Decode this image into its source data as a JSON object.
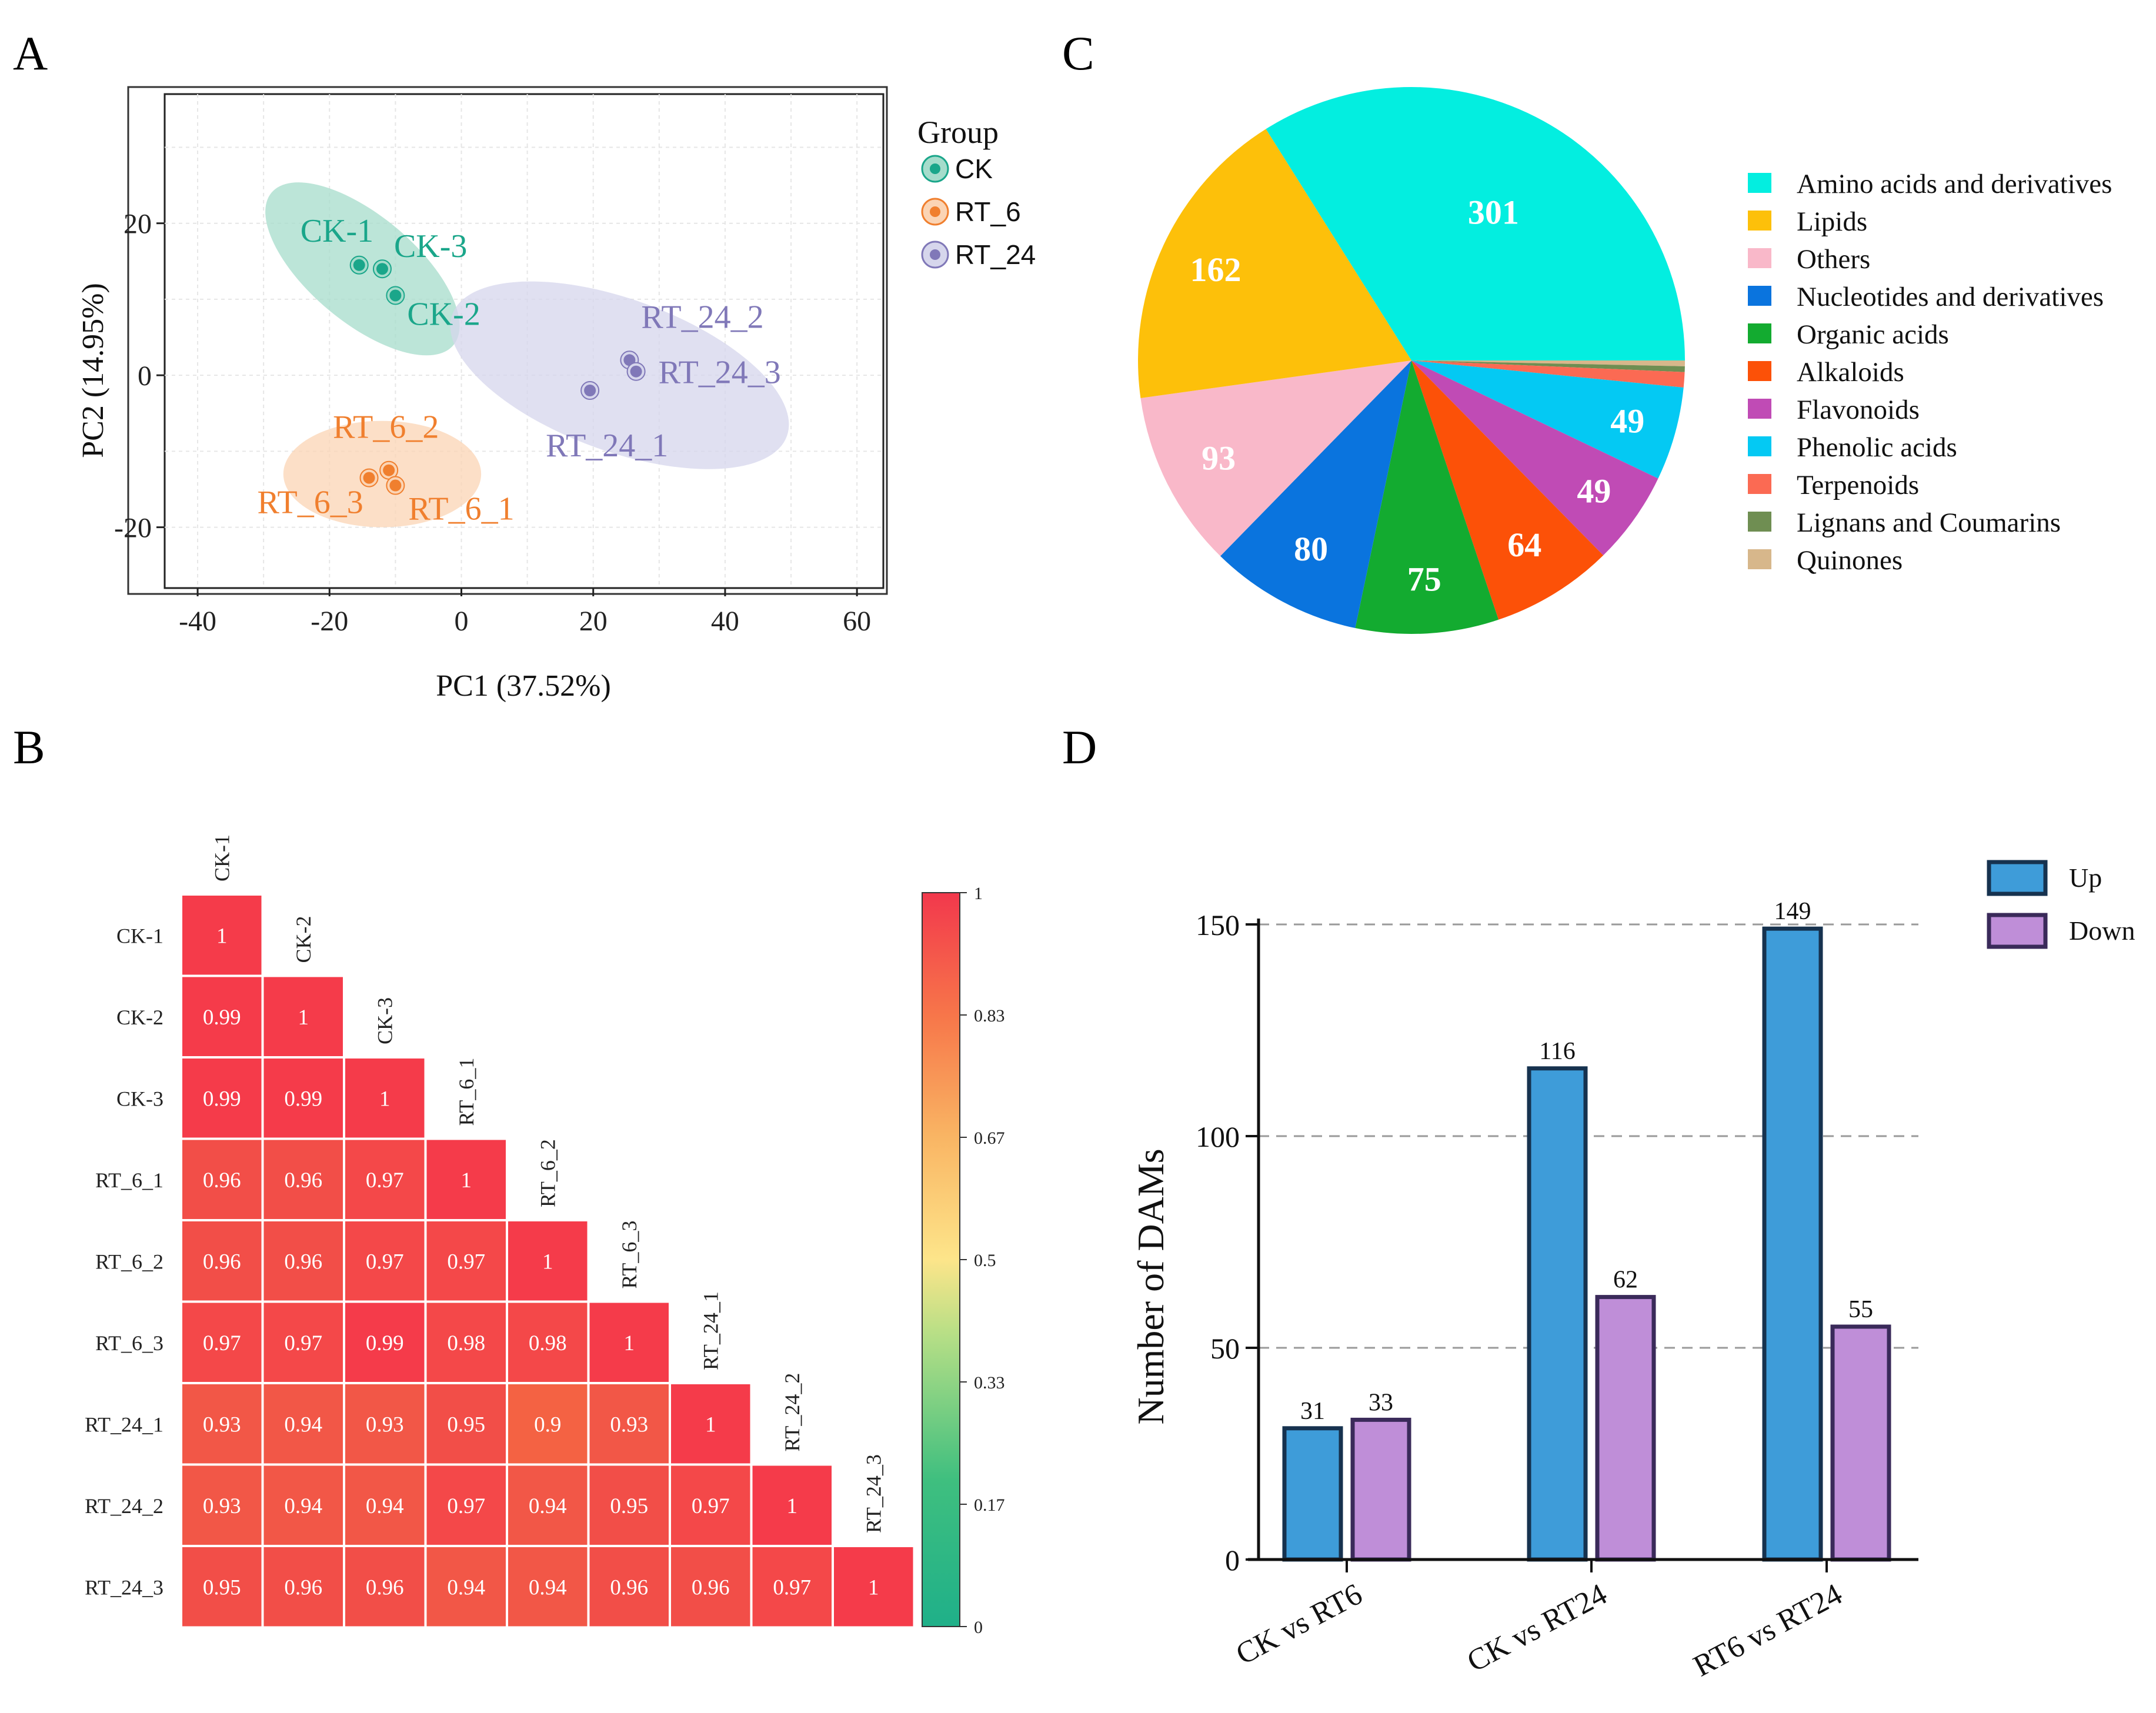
{
  "panel_labels": {
    "a": "A",
    "b": "B",
    "c": "C",
    "d": "D"
  },
  "chart_data": [
    {
      "id": "A",
      "type": "scatter",
      "xlabel": "PC1 (37.52%)",
      "ylabel": "PC2 (14.95%)",
      "xlim": [
        -45,
        64
      ],
      "ylim": [
        -28,
        37
      ],
      "xticks": [
        -40,
        -20,
        0,
        20,
        40,
        60
      ],
      "yticks": [
        -20,
        0,
        20
      ],
      "legend_title": "Group",
      "legend_position": "right",
      "groups": [
        {
          "name": "CK",
          "color": "#1aa68a",
          "fill": "#a5dccb",
          "ellipse": {
            "cx": -15,
            "cy": 14,
            "rx": 18,
            "ry": 7,
            "angle_deg": -40
          },
          "points": [
            {
              "label": "CK-1",
              "x": -15.5,
              "y": 14.5
            },
            {
              "label": "CK-3",
              "x": -12,
              "y": 14
            },
            {
              "label": "CK-2",
              "x": -10,
              "y": 10.5
            }
          ]
        },
        {
          "name": "RT_6",
          "color": "#f07f2e",
          "fill": "#fbd4b4",
          "ellipse": {
            "cx": -12,
            "cy": -13,
            "rx": 15,
            "ry": 7,
            "angle_deg": 0
          },
          "points": [
            {
              "label": "RT_6_2",
              "x": -11,
              "y": -12.5
            },
            {
              "label": "RT_6_3",
              "x": -14,
              "y": -13.5
            },
            {
              "label": "RT_6_1",
              "x": -10,
              "y": -14.5
            }
          ]
        },
        {
          "name": "RT_24",
          "color": "#8078b8",
          "fill": "#d6d6ec",
          "ellipse": {
            "cx": 24,
            "cy": 0,
            "rx": 27,
            "ry": 10,
            "angle_deg": -20
          },
          "points": [
            {
              "label": "RT_24_2",
              "x": 25.5,
              "y": 2
            },
            {
              "label": "RT_24_3",
              "x": 26.5,
              "y": 0.5
            },
            {
              "label": "RT_24_1",
              "x": 19.5,
              "y": -2
            }
          ]
        }
      ]
    },
    {
      "id": "B",
      "type": "heatmap",
      "labels": [
        "CK-1",
        "CK-2",
        "CK-3",
        "RT_6_1",
        "RT_6_2",
        "RT_6_3",
        "RT_24_1",
        "RT_24_2",
        "RT_24_3"
      ],
      "matrix": [
        [
          1
        ],
        [
          0.99,
          1
        ],
        [
          0.99,
          0.99,
          1
        ],
        [
          0.96,
          0.96,
          0.97,
          1
        ],
        [
          0.96,
          0.96,
          0.97,
          0.97,
          1
        ],
        [
          0.97,
          0.97,
          0.99,
          0.98,
          0.98,
          1
        ],
        [
          0.93,
          0.94,
          0.93,
          0.95,
          0.9,
          0.93,
          1
        ],
        [
          0.93,
          0.94,
          0.94,
          0.97,
          0.94,
          0.95,
          0.97,
          1
        ],
        [
          0.95,
          0.96,
          0.96,
          0.94,
          0.94,
          0.96,
          0.96,
          0.97,
          1
        ]
      ],
      "colorbar_ticks": [
        "1",
        "0.83",
        "0.67",
        "0.5",
        "0.33",
        "0.17",
        "0"
      ],
      "colorbar_range": [
        0,
        1
      ]
    },
    {
      "id": "C",
      "type": "pie",
      "slices": [
        {
          "label": "Amino acids and derivatives",
          "value": 301,
          "color": "#03eee0",
          "text": "301"
        },
        {
          "label": "Lipids",
          "value": 162,
          "color": "#fdc00a",
          "text": "162"
        },
        {
          "label": "Others",
          "value": 93,
          "color": "#f9b8c9",
          "text": "93"
        },
        {
          "label": "Nucleotides and derivatives",
          "value": 80,
          "color": "#0a74de",
          "text": "80"
        },
        {
          "label": "Organic acids",
          "value": 75,
          "color": "#13ab30",
          "text": "75"
        },
        {
          "label": "Alkaloids",
          "value": 64,
          "color": "#fc5108",
          "text": "64"
        },
        {
          "label": "Flavonoids",
          "value": 49,
          "color": "#c04bb5",
          "text": "49"
        },
        {
          "label": "Phenolic acids",
          "value": 49,
          "color": "#04c9f3",
          "text": "49"
        },
        {
          "label": "Terpenoids",
          "value": 8,
          "color": "#fb6a53",
          "text": ""
        },
        {
          "label": "Lignans and Coumarins",
          "value": 3,
          "color": "#6f8e52",
          "text": ""
        },
        {
          "label": "Quinones",
          "value": 3,
          "color": "#d7b78b",
          "text": ""
        }
      ],
      "order": [
        "Amino acids and derivatives",
        "Phenolic acids",
        "Flavonoids",
        "Alkaloids",
        "Organic acids",
        "Nucleotides and derivatives",
        "Others",
        "Lipids"
      ],
      "legend_position": "right"
    },
    {
      "id": "D",
      "type": "bar",
      "categories": [
        "CK vs RT6",
        "CK vs RT24",
        "RT6 vs RT24"
      ],
      "series": [
        {
          "name": "Up",
          "values": [
            31,
            116,
            149
          ],
          "color": "#3e9cd9",
          "stroke": "#16324f"
        },
        {
          "name": "Down",
          "values": [
            33,
            62,
            55
          ],
          "color": "#bf8ed8",
          "stroke": "#3a2a5a"
        }
      ],
      "ylabel": "Number of DAMs",
      "ylim": [
        0,
        150
      ],
      "yticks": [
        0,
        50,
        100,
        150
      ],
      "grid_lines": [
        50,
        100,
        150
      ],
      "legend_position": "top-right"
    }
  ]
}
